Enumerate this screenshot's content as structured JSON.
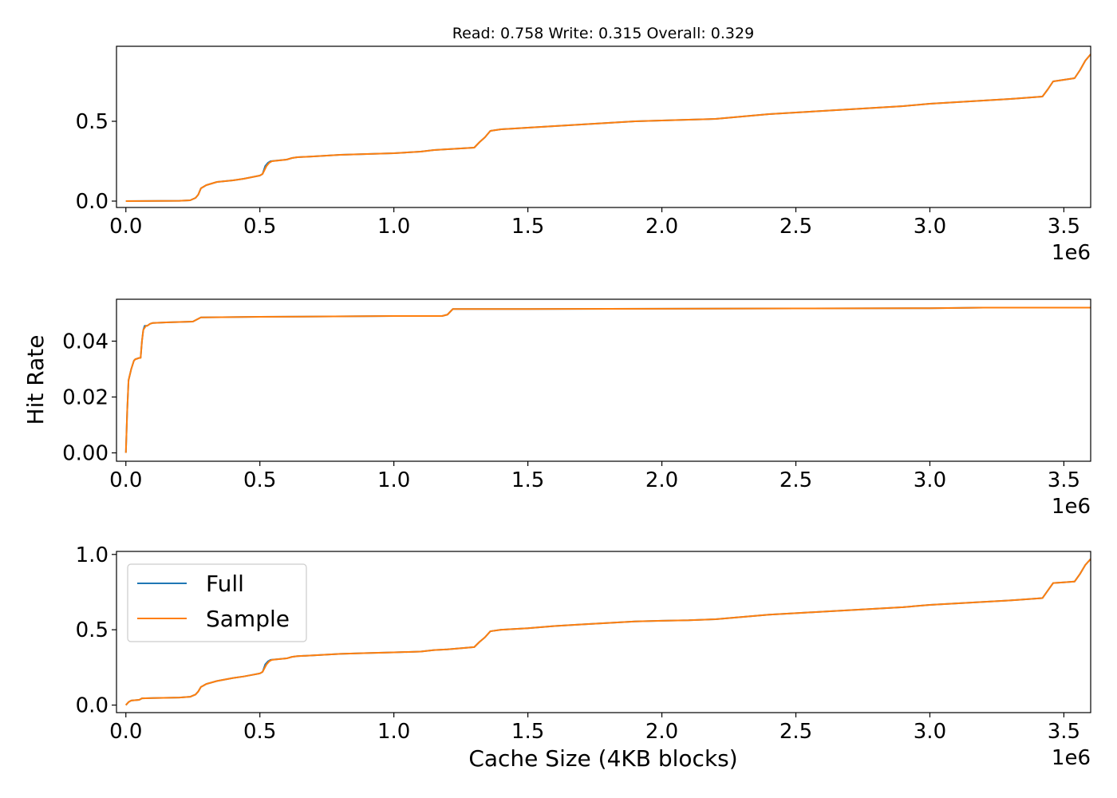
{
  "title": "Read: 0.758 Write: 0.315 Overall: 0.329",
  "xlabel": "Cache Size (4KB blocks)",
  "ylabel": "Hit Rate",
  "x_offset_label": "1e6",
  "legend": {
    "placement": "upper-left",
    "entries": [
      "Full",
      "Sample"
    ]
  },
  "colors": {
    "Full": "#1f77b4",
    "Sample": "#ff7f0e"
  },
  "chart_data": [
    {
      "type": "line",
      "xlim": [
        -0.035,
        3.6
      ],
      "ylim": [
        -0.04,
        0.97
      ],
      "xticks": [
        0.0,
        0.5,
        1.0,
        1.5,
        2.0,
        2.5,
        3.0,
        3.5
      ],
      "xtick_labels": [
        "0.0",
        "0.5",
        "1.0",
        "1.5",
        "2.0",
        "2.5",
        "3.0",
        "3.5"
      ],
      "yticks": [
        0.0,
        0.5
      ],
      "ytick_labels": [
        "0.0",
        "0.5"
      ],
      "series": [
        {
          "name": "Full",
          "x": [
            0,
            0.2,
            0.24,
            0.26,
            0.27,
            0.28,
            0.3,
            0.34,
            0.4,
            0.44,
            0.47,
            0.5,
            0.51,
            0.52,
            0.53,
            0.54,
            0.6,
            0.62,
            0.64,
            0.7,
            0.8,
            0.9,
            1.0,
            1.1,
            1.15,
            1.2,
            1.3,
            1.32,
            1.34,
            1.36,
            1.4,
            1.5,
            1.6,
            1.7,
            1.8,
            1.9,
            2.0,
            2.1,
            2.2,
            2.3,
            2.4,
            2.5,
            2.6,
            2.7,
            2.8,
            2.9,
            3.0,
            3.1,
            3.2,
            3.3,
            3.42,
            3.44,
            3.46,
            3.5,
            3.54,
            3.56,
            3.58,
            3.6
          ],
          "y": [
            0.0,
            0.002,
            0.005,
            0.02,
            0.04,
            0.08,
            0.1,
            0.12,
            0.13,
            0.14,
            0.15,
            0.16,
            0.17,
            0.22,
            0.24,
            0.25,
            0.26,
            0.27,
            0.275,
            0.28,
            0.29,
            0.295,
            0.3,
            0.31,
            0.32,
            0.325,
            0.335,
            0.37,
            0.4,
            0.44,
            0.45,
            0.46,
            0.47,
            0.48,
            0.49,
            0.5,
            0.505,
            0.51,
            0.515,
            0.53,
            0.545,
            0.555,
            0.565,
            0.575,
            0.585,
            0.595,
            0.61,
            0.62,
            0.63,
            0.64,
            0.655,
            0.7,
            0.75,
            0.76,
            0.77,
            0.82,
            0.88,
            0.92
          ]
        },
        {
          "name": "Sample",
          "x": [
            0,
            0.2,
            0.24,
            0.26,
            0.27,
            0.28,
            0.3,
            0.34,
            0.4,
            0.44,
            0.47,
            0.5,
            0.51,
            0.525,
            0.535,
            0.545,
            0.6,
            0.62,
            0.64,
            0.7,
            0.8,
            0.9,
            1.0,
            1.1,
            1.15,
            1.2,
            1.3,
            1.32,
            1.34,
            1.36,
            1.4,
            1.5,
            1.6,
            1.7,
            1.8,
            1.9,
            2.0,
            2.1,
            2.2,
            2.3,
            2.4,
            2.5,
            2.6,
            2.7,
            2.8,
            2.9,
            3.0,
            3.1,
            3.2,
            3.3,
            3.42,
            3.44,
            3.46,
            3.5,
            3.54,
            3.56,
            3.58,
            3.6
          ],
          "y": [
            0.0,
            0.002,
            0.005,
            0.02,
            0.04,
            0.08,
            0.1,
            0.12,
            0.13,
            0.14,
            0.15,
            0.16,
            0.17,
            0.22,
            0.24,
            0.25,
            0.26,
            0.27,
            0.275,
            0.28,
            0.29,
            0.295,
            0.3,
            0.31,
            0.32,
            0.325,
            0.335,
            0.37,
            0.4,
            0.44,
            0.45,
            0.46,
            0.47,
            0.48,
            0.49,
            0.5,
            0.505,
            0.51,
            0.515,
            0.53,
            0.545,
            0.555,
            0.565,
            0.575,
            0.585,
            0.595,
            0.61,
            0.62,
            0.63,
            0.64,
            0.655,
            0.7,
            0.75,
            0.76,
            0.77,
            0.82,
            0.88,
            0.92
          ]
        }
      ]
    },
    {
      "type": "line",
      "xlim": [
        -0.035,
        3.6
      ],
      "ylim": [
        -0.003,
        0.055
      ],
      "xticks": [
        0.0,
        0.5,
        1.0,
        1.5,
        2.0,
        2.5,
        3.0,
        3.5
      ],
      "xtick_labels": [
        "0.0",
        "0.5",
        "1.0",
        "1.5",
        "2.0",
        "2.5",
        "3.0",
        "3.5"
      ],
      "yticks": [
        0.0,
        0.02,
        0.04
      ],
      "ytick_labels": [
        "0.00",
        "0.02",
        "0.04"
      ],
      "series": [
        {
          "name": "Full",
          "x": [
            0,
            0.005,
            0.01,
            0.015,
            0.02,
            0.03,
            0.035,
            0.05,
            0.055,
            0.06,
            0.065,
            0.07,
            0.08,
            0.09,
            0.1,
            0.15,
            0.25,
            0.27,
            0.28,
            0.5,
            1.0,
            1.18,
            1.2,
            1.22,
            1.23,
            1.5,
            2.0,
            2.5,
            3.0,
            3.2,
            3.6
          ],
          "y": [
            0.0,
            0.015,
            0.026,
            0.028,
            0.03,
            0.033,
            0.0335,
            0.034,
            0.034,
            0.04,
            0.044,
            0.0455,
            0.0455,
            0.0462,
            0.0465,
            0.0467,
            0.047,
            0.048,
            0.0485,
            0.0487,
            0.049,
            0.049,
            0.0495,
            0.0515,
            0.0515,
            0.0515,
            0.0516,
            0.0517,
            0.0518,
            0.052,
            0.052
          ]
        },
        {
          "name": "Sample",
          "x": [
            0,
            0.005,
            0.01,
            0.015,
            0.02,
            0.03,
            0.035,
            0.05,
            0.055,
            0.06,
            0.065,
            0.075,
            0.08,
            0.09,
            0.1,
            0.15,
            0.25,
            0.27,
            0.28,
            0.5,
            1.0,
            1.18,
            1.2,
            1.22,
            1.23,
            1.5,
            2.0,
            2.5,
            3.0,
            3.2,
            3.6
          ],
          "y": [
            0.0,
            0.015,
            0.026,
            0.028,
            0.03,
            0.033,
            0.0335,
            0.034,
            0.034,
            0.04,
            0.044,
            0.0455,
            0.0455,
            0.0462,
            0.0465,
            0.0467,
            0.047,
            0.048,
            0.0485,
            0.0487,
            0.049,
            0.049,
            0.0495,
            0.0515,
            0.0515,
            0.0515,
            0.0516,
            0.0517,
            0.0518,
            0.052,
            0.052
          ]
        }
      ]
    },
    {
      "type": "line",
      "xlim": [
        -0.035,
        3.6
      ],
      "ylim": [
        -0.05,
        1.02
      ],
      "xticks": [
        0.0,
        0.5,
        1.0,
        1.5,
        2.0,
        2.5,
        3.0,
        3.5
      ],
      "xtick_labels": [
        "0.0",
        "0.5",
        "1.0",
        "1.5",
        "2.0",
        "2.5",
        "3.0",
        "3.5"
      ],
      "yticks": [
        0.0,
        0.5,
        1.0
      ],
      "ytick_labels": [
        "0.0",
        "0.5",
        "1.0"
      ],
      "series": [
        {
          "name": "Full",
          "x": [
            0,
            0.01,
            0.02,
            0.05,
            0.06,
            0.1,
            0.2,
            0.24,
            0.26,
            0.27,
            0.28,
            0.3,
            0.34,
            0.4,
            0.44,
            0.47,
            0.5,
            0.51,
            0.52,
            0.53,
            0.54,
            0.6,
            0.62,
            0.64,
            0.7,
            0.8,
            0.9,
            1.0,
            1.1,
            1.15,
            1.2,
            1.3,
            1.32,
            1.34,
            1.36,
            1.4,
            1.5,
            1.6,
            1.7,
            1.8,
            1.9,
            2.0,
            2.1,
            2.2,
            2.3,
            2.4,
            2.5,
            2.6,
            2.7,
            2.8,
            2.9,
            3.0,
            3.1,
            3.2,
            3.3,
            3.42,
            3.44,
            3.46,
            3.5,
            3.54,
            3.56,
            3.58,
            3.6
          ],
          "y": [
            0.0,
            0.02,
            0.03,
            0.035,
            0.045,
            0.047,
            0.05,
            0.055,
            0.07,
            0.09,
            0.12,
            0.14,
            0.16,
            0.18,
            0.19,
            0.2,
            0.21,
            0.22,
            0.27,
            0.29,
            0.3,
            0.31,
            0.32,
            0.325,
            0.33,
            0.34,
            0.345,
            0.35,
            0.355,
            0.365,
            0.37,
            0.385,
            0.42,
            0.45,
            0.49,
            0.5,
            0.51,
            0.525,
            0.535,
            0.545,
            0.555,
            0.56,
            0.563,
            0.57,
            0.585,
            0.6,
            0.61,
            0.62,
            0.63,
            0.64,
            0.65,
            0.665,
            0.675,
            0.685,
            0.695,
            0.71,
            0.76,
            0.81,
            0.815,
            0.82,
            0.87,
            0.93,
            0.97
          ]
        },
        {
          "name": "Sample",
          "x": [
            0,
            0.01,
            0.02,
            0.05,
            0.06,
            0.1,
            0.2,
            0.24,
            0.26,
            0.27,
            0.28,
            0.3,
            0.34,
            0.4,
            0.44,
            0.47,
            0.5,
            0.51,
            0.525,
            0.535,
            0.545,
            0.6,
            0.62,
            0.64,
            0.7,
            0.8,
            0.9,
            1.0,
            1.1,
            1.15,
            1.2,
            1.3,
            1.32,
            1.34,
            1.36,
            1.4,
            1.5,
            1.6,
            1.7,
            1.8,
            1.9,
            2.0,
            2.1,
            2.2,
            2.3,
            2.4,
            2.5,
            2.6,
            2.7,
            2.8,
            2.9,
            3.0,
            3.1,
            3.2,
            3.3,
            3.42,
            3.44,
            3.46,
            3.5,
            3.54,
            3.56,
            3.58,
            3.6
          ],
          "y": [
            0.0,
            0.02,
            0.03,
            0.035,
            0.045,
            0.047,
            0.05,
            0.055,
            0.07,
            0.09,
            0.12,
            0.14,
            0.16,
            0.18,
            0.19,
            0.2,
            0.21,
            0.22,
            0.27,
            0.29,
            0.3,
            0.31,
            0.32,
            0.325,
            0.33,
            0.34,
            0.345,
            0.35,
            0.355,
            0.365,
            0.37,
            0.385,
            0.42,
            0.45,
            0.49,
            0.5,
            0.51,
            0.525,
            0.535,
            0.545,
            0.555,
            0.56,
            0.563,
            0.57,
            0.585,
            0.6,
            0.61,
            0.62,
            0.63,
            0.64,
            0.65,
            0.665,
            0.675,
            0.685,
            0.695,
            0.71,
            0.76,
            0.81,
            0.815,
            0.82,
            0.87,
            0.93,
            0.97
          ]
        }
      ]
    }
  ]
}
